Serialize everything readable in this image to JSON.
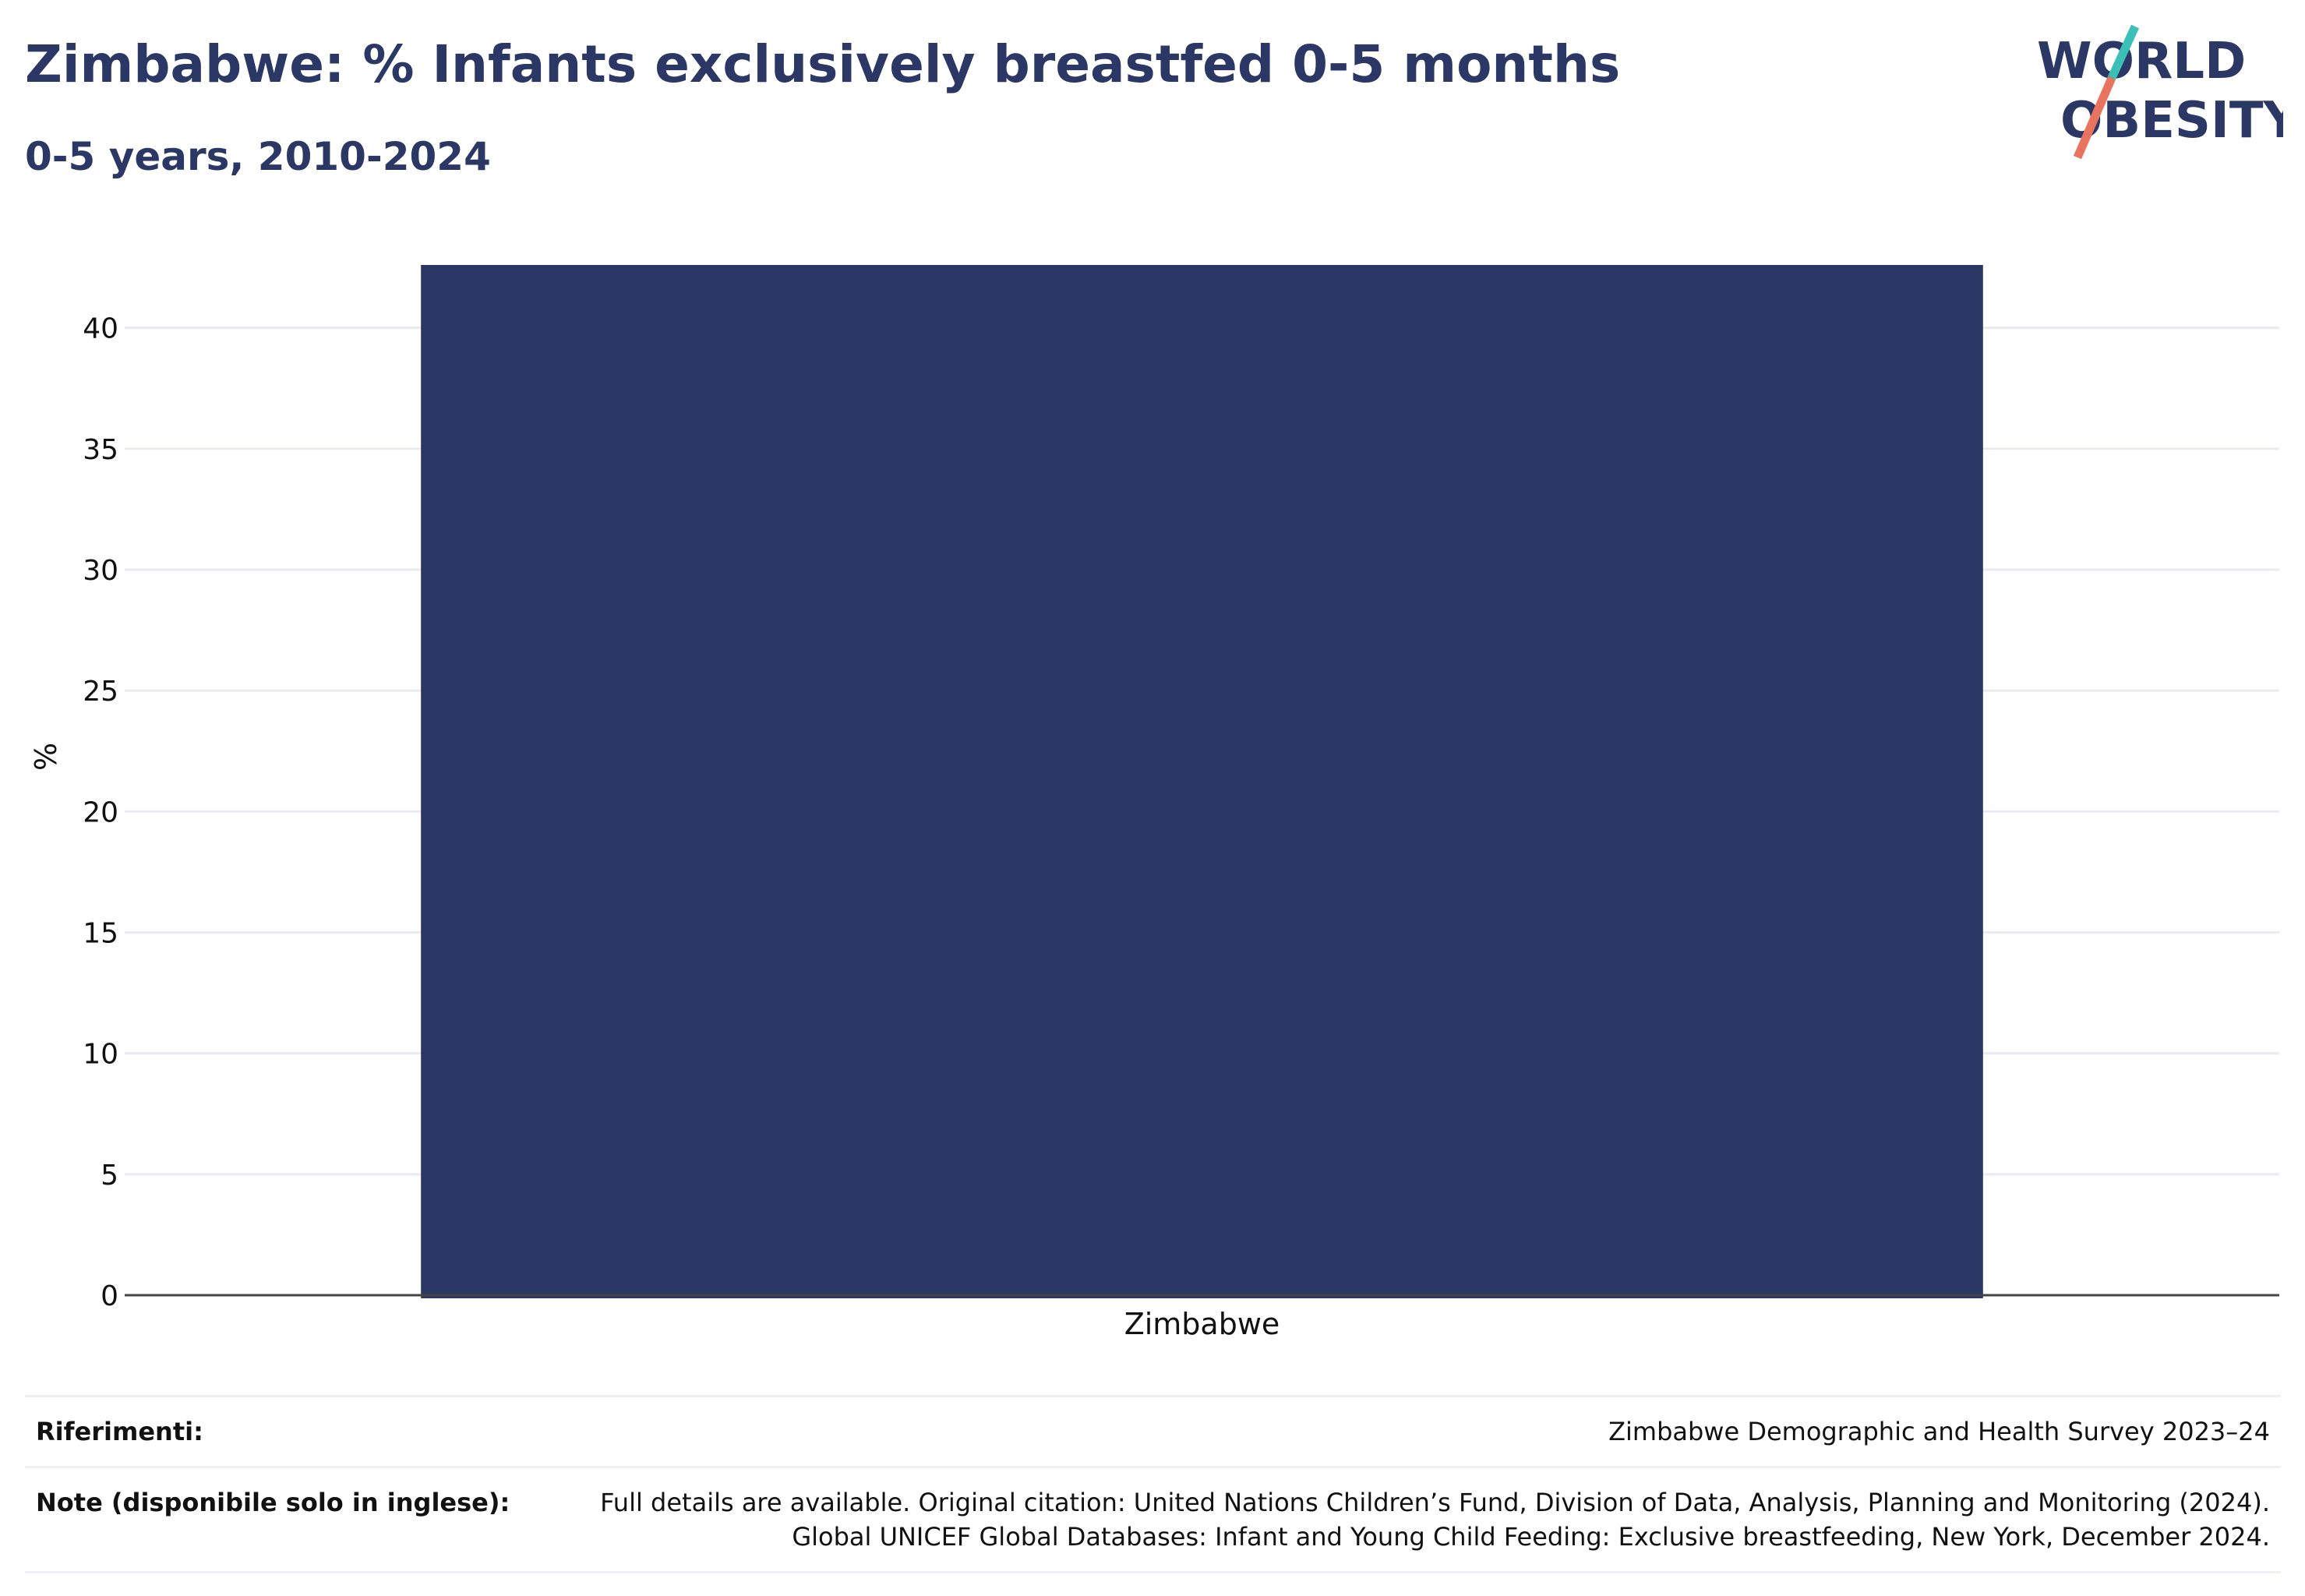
{
  "header": {
    "title": "Zimbabwe: % Infants exclusively breastfed 0-5 months",
    "subtitle": "0-5 years, 2010-2024"
  },
  "logo": {
    "line1": "WORLD",
    "line2": "OBESITY",
    "colors": {
      "text": "#2b3764",
      "slash_top": "#3bbfb6",
      "slash_bottom": "#e8735f"
    }
  },
  "chart_data": {
    "type": "bar",
    "categories": [
      "Zimbabwe"
    ],
    "values": [
      42.6
    ],
    "title": "",
    "xlabel": "",
    "ylabel": "%",
    "ylim": [
      0,
      42.6
    ],
    "yticks": [
      0,
      5,
      10,
      15,
      20,
      25,
      30,
      35,
      40
    ],
    "grid": true,
    "legend": "none",
    "bar_color": "#2b3764"
  },
  "notes": {
    "references_label": "Riferimenti:",
    "references_value": "Zimbabwe Demographic and Health Survey 2023–24",
    "note_label": "Note (disponibile solo in inglese):",
    "note_line1": "Full details are available. Original citation: United Nations Children’s Fund, Division of Data, Analysis, Planning and Monitoring (2024).",
    "note_line2": "Global UNICEF Global Databases: Infant and Young Child Feeding: Exclusive breastfeeding, New York, December 2024."
  }
}
